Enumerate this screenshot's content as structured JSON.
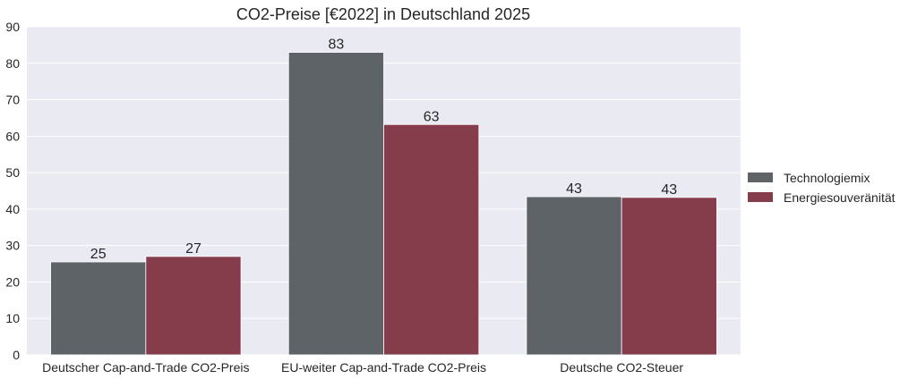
{
  "chart_data": {
    "type": "bar",
    "title": "CO2-Preise [€2022] in Deutschland 2025",
    "xlabel": "",
    "ylabel": "",
    "categories": [
      "Deutscher Cap-and-Trade CO2-Preis",
      "EU-weiter Cap-and-Trade CO2-Preis",
      "Deutsche CO2-Steuer"
    ],
    "series": [
      {
        "name": "Technologiemix",
        "values": [
          25.5,
          83,
          43.4
        ],
        "labels": [
          "25",
          "83",
          "43"
        ]
      },
      {
        "name": "Energiesouveränität",
        "values": [
          27,
          63.2,
          43.2
        ],
        "labels": [
          "27",
          "63",
          "43"
        ]
      }
    ],
    "ylim": [
      0,
      90
    ],
    "yticks": [
      0,
      10,
      20,
      30,
      40,
      50,
      60,
      70,
      80,
      90
    ],
    "grid": true,
    "legend_position": "right",
    "colors": {
      "plot_background": "#EAEAF2",
      "grid": "#FFFFFF",
      "series": [
        "#5E6368",
        "#853D4B"
      ]
    }
  }
}
